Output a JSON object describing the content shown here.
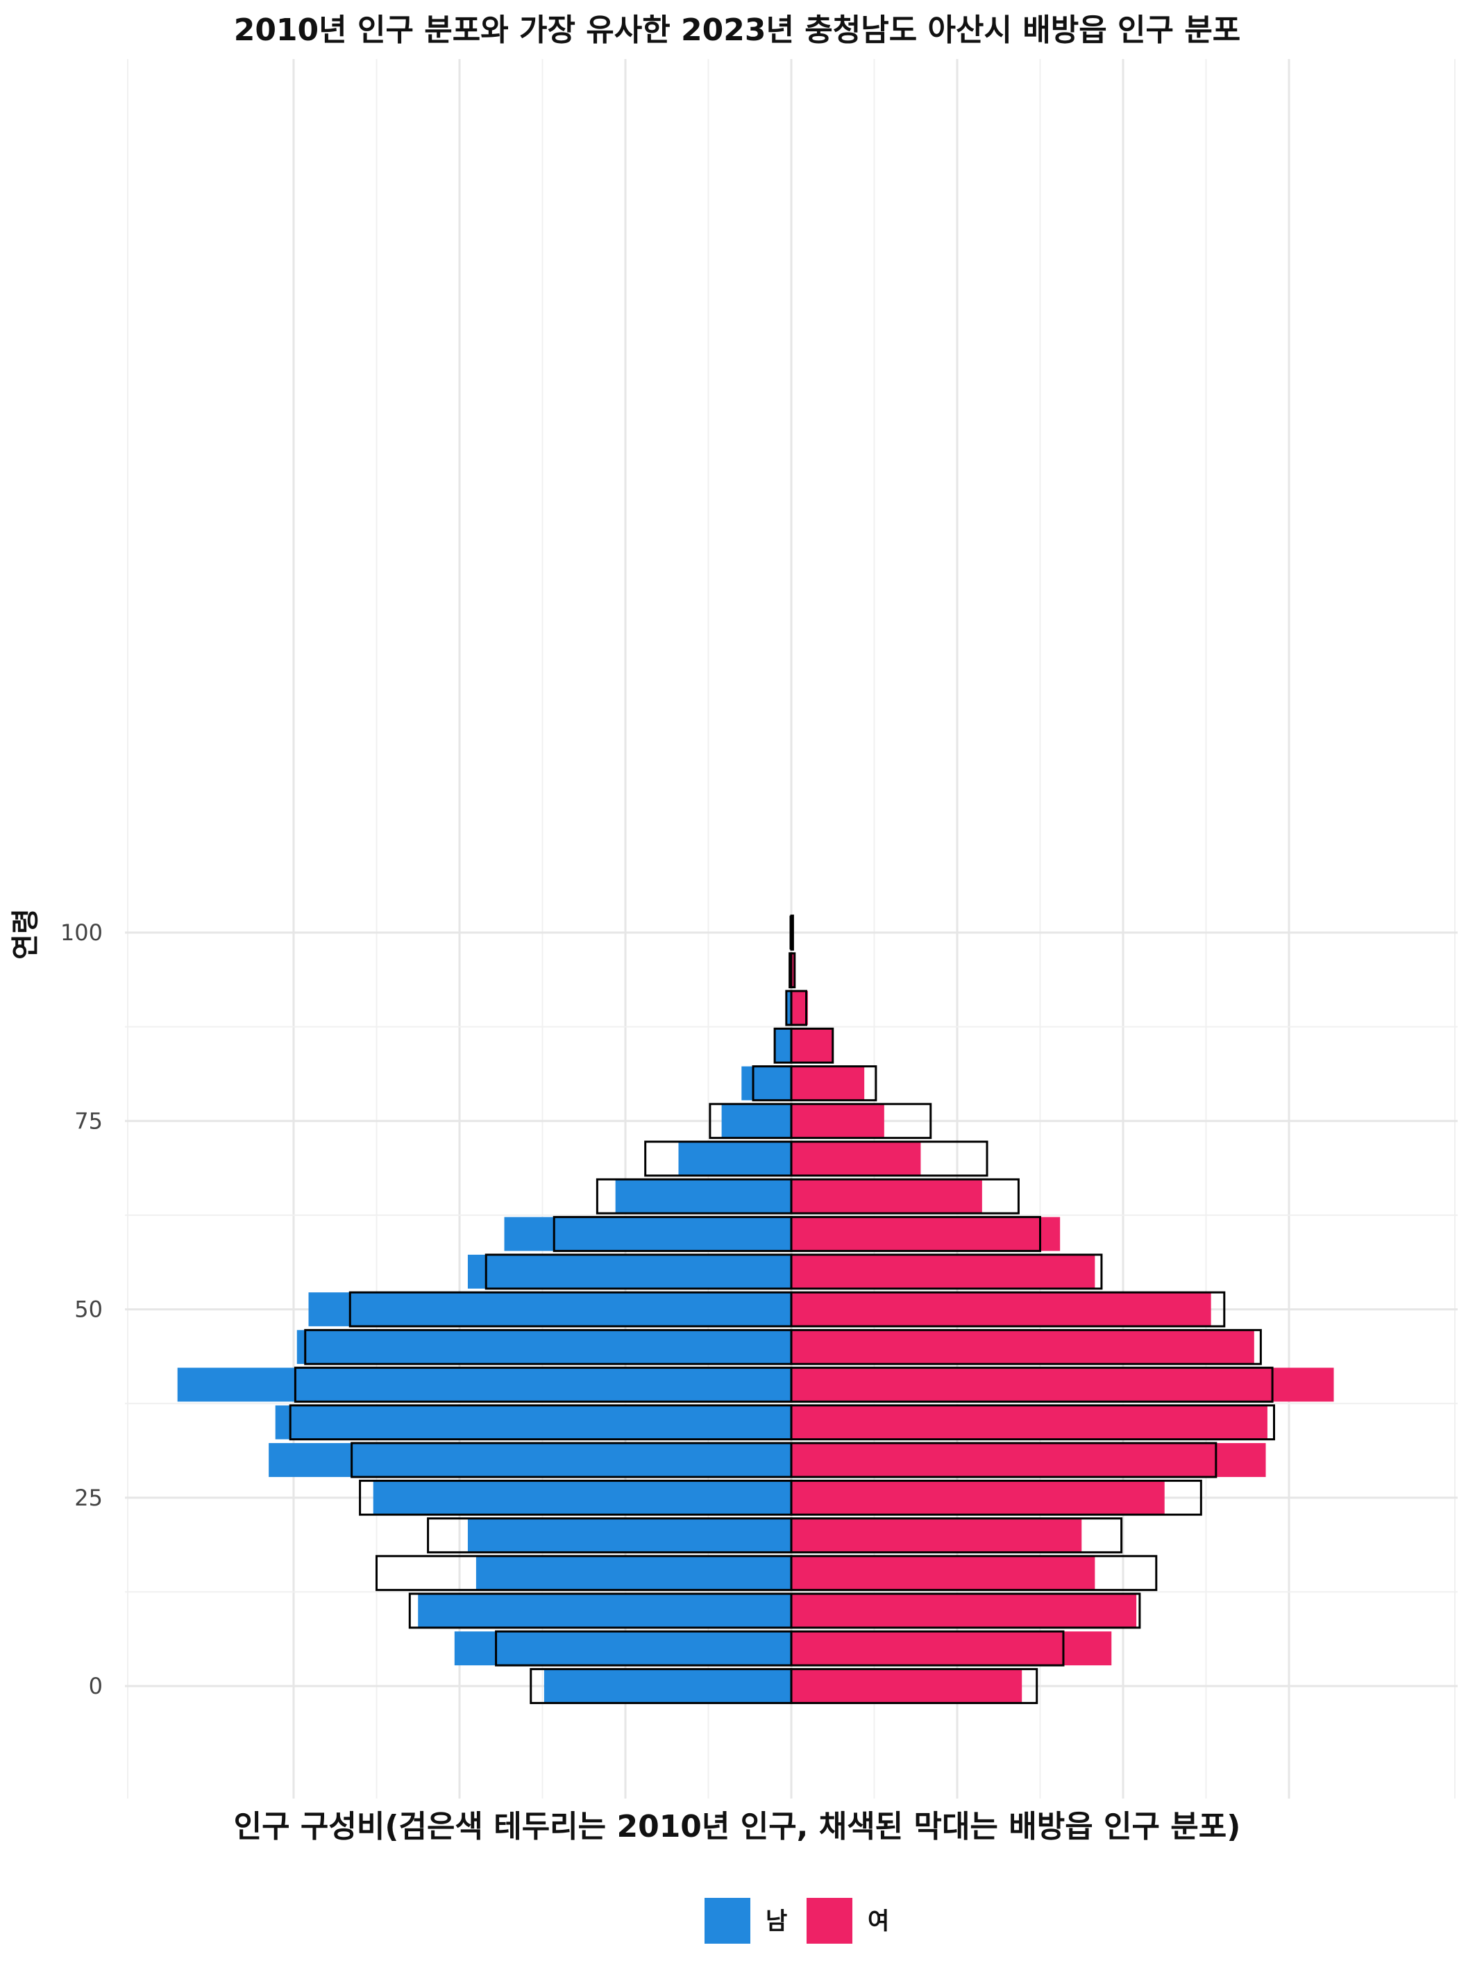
{
  "chart_data": {
    "type": "bar",
    "orientation": "horizontal-population-pyramid",
    "title": "2010년 인구 분포와 가장 유사한 2023년 충청남도 아산시 배방읍 인구 분포",
    "xlabel": "인구 구성비(검은색 테두리는 2010년 인구, 채색된 막대는 배방읍 인구 분포)",
    "ylabel": "연령",
    "y_ticks": [
      0,
      25,
      50,
      75,
      100
    ],
    "ylim": [
      -8,
      107
    ],
    "xlim": [
      -0.04,
      0.04
    ],
    "bin_width": 5,
    "grid": true,
    "legend_position": "bottom",
    "colors": {
      "male": "#2288dd",
      "female": "#ee2266",
      "outline": "#000000"
    },
    "age_bins": [
      0,
      5,
      10,
      15,
      20,
      25,
      30,
      35,
      40,
      45,
      50,
      55,
      60,
      65,
      70,
      75,
      80,
      85,
      90,
      95,
      100
    ],
    "series": [
      {
        "name": "남",
        "role": "male_2023",
        "values": [
          0.0149,
          0.0203,
          0.0225,
          0.019,
          0.0195,
          0.0252,
          0.0315,
          0.0311,
          0.037,
          0.0298,
          0.0291,
          0.0195,
          0.0173,
          0.0106,
          0.0068,
          0.0042,
          0.003,
          0.001,
          0.0003,
          0.0001,
          0.0
        ]
      },
      {
        "name": "여",
        "role": "female_2023",
        "values": [
          0.0139,
          0.0193,
          0.0208,
          0.0183,
          0.0175,
          0.0225,
          0.0286,
          0.0287,
          0.0327,
          0.0279,
          0.0253,
          0.0183,
          0.0162,
          0.0115,
          0.0078,
          0.0056,
          0.0044,
          0.0025,
          0.001,
          0.0002,
          0.0001
        ]
      },
      {
        "role": "male_2010_outline",
        "values": [
          0.0157,
          0.0178,
          0.023,
          0.025,
          0.0219,
          0.026,
          0.0265,
          0.0302,
          0.0299,
          0.0293,
          0.0266,
          0.0184,
          0.0143,
          0.0117,
          0.0088,
          0.0049,
          0.0023,
          0.001,
          0.0003,
          0.0001,
          0.0
        ]
      },
      {
        "role": "female_2010_outline",
        "values": [
          0.0148,
          0.0164,
          0.021,
          0.022,
          0.0199,
          0.0247,
          0.0256,
          0.0291,
          0.029,
          0.0283,
          0.0261,
          0.0187,
          0.015,
          0.0137,
          0.0118,
          0.0084,
          0.0051,
          0.0025,
          0.0009,
          0.0002,
          0.0001
        ]
      }
    ],
    "legend": [
      {
        "label": "남",
        "color": "#2288dd"
      },
      {
        "label": "여",
        "color": "#ee2266"
      }
    ]
  }
}
